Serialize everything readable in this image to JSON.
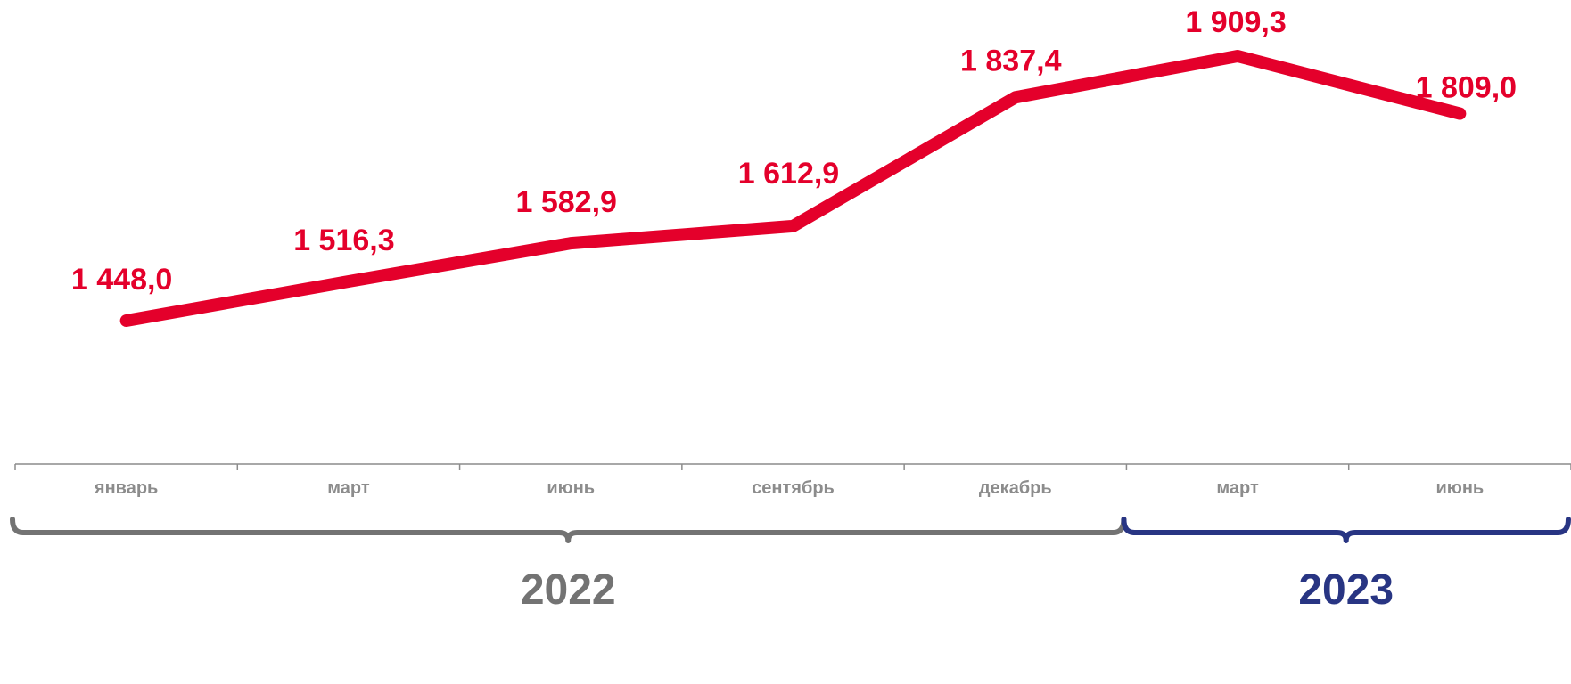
{
  "chart_data": {
    "type": "line",
    "title": "",
    "xlabel": "",
    "ylabel": "",
    "categories": [
      "январь",
      "март",
      "июнь",
      "сентябрь",
      "декабрь",
      "март",
      "июнь"
    ],
    "series": [
      {
        "values": [
          1448.0,
          1516.3,
          1582.9,
          1612.9,
          1837.4,
          1909.3,
          1809.0
        ],
        "labels": [
          "1 448,0",
          "1 516,3",
          "1 582,9",
          "1 612,9",
          "1 837,4",
          "1 909,3",
          "1 809,0"
        ],
        "color": "#e4002b"
      }
    ],
    "groups": [
      {
        "label": "2022",
        "from": 0,
        "to": 4,
        "color": "#737373"
      },
      {
        "label": "2023",
        "from": 5,
        "to": 6,
        "color": "#283583"
      }
    ],
    "grid": false,
    "axis_color": "#8c8c8c",
    "tick_label_color": "#8c8c8c"
  }
}
